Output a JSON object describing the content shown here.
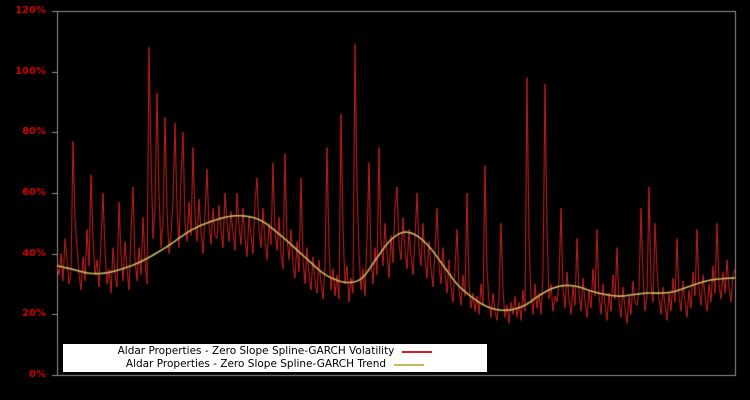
{
  "window": {
    "background": "#000000"
  },
  "axis": {
    "label_color": "#cc0000",
    "frame_color": "#909090",
    "y_ticks": [
      {
        "label": "0%",
        "value": 0
      },
      {
        "label": "20%",
        "value": 20
      },
      {
        "label": "40%",
        "value": 40
      },
      {
        "label": "60%",
        "value": 60
      },
      {
        "label": "80%",
        "value": 80
      },
      {
        "label": "100%",
        "value": 100
      },
      {
        "label": "120%",
        "value": 120
      }
    ]
  },
  "legend": {
    "background": "#ffffff",
    "text_color": "#000000",
    "entries": [
      {
        "label": "Aldar Properties - Zero Slope Spline-GARCH Volatility",
        "color": "#cc2222"
      },
      {
        "label": "Aldar Properties - Zero Slope Spline-GARCH Trend",
        "color": "#c8b860"
      }
    ]
  },
  "chart_data": {
    "type": "line",
    "title": "",
    "xlabel": "",
    "ylabel": "",
    "ylim": [
      0,
      120
    ],
    "y_unit": "percent",
    "grid": false,
    "plot_background": "#000000",
    "legend_position": "inside-bottom-left",
    "series": [
      {
        "name": "Aldar Properties - Zero Slope Spline-GARCH Volatility",
        "color": "#cc2222",
        "style": "noisy-line",
        "values": [
          36,
          33,
          40,
          31,
          45,
          38,
          30,
          34,
          77,
          52,
          42,
          33,
          28,
          39,
          31,
          48,
          36,
          66,
          45,
          33,
          38,
          29,
          44,
          60,
          41,
          30,
          35,
          27,
          42,
          33,
          29,
          57,
          40,
          31,
          44,
          35,
          28,
          47,
          62,
          38,
          31,
          42,
          33,
          52,
          38,
          30,
          108,
          72,
          45,
          55,
          93,
          60,
          42,
          50,
          85,
          55,
          40,
          46,
          58,
          83,
          55,
          42,
          65,
          80,
          50,
          44,
          57,
          46,
          75,
          52,
          44,
          58,
          47,
          40,
          53,
          68,
          49,
          43,
          55,
          46,
          45,
          56,
          48,
          42,
          60,
          50,
          44,
          54,
          47,
          41,
          60,
          49,
          43,
          55,
          45,
          39,
          52,
          46,
          40,
          57,
          65,
          48,
          42,
          55,
          44,
          38,
          50,
          43,
          70,
          47,
          41,
          52,
          40,
          35,
          73,
          45,
          38,
          48,
          36,
          32,
          44,
          34,
          65,
          38,
          30,
          42,
          33,
          28,
          39,
          31,
          27,
          38,
          30,
          25,
          36,
          75,
          42,
          28,
          35,
          26,
          33,
          25,
          86,
          48,
          30,
          36,
          24,
          32,
          27,
          109,
          62,
          40,
          28,
          35,
          26,
          45,
          70,
          38,
          30,
          42,
          33,
          75,
          44,
          36,
          50,
          40,
          32,
          46,
          37,
          55,
          62,
          43,
          38,
          52,
          41,
          35,
          48,
          39,
          33,
          45,
          60,
          42,
          36,
          50,
          38,
          32,
          44,
          35,
          29,
          41,
          55,
          36,
          30,
          42,
          33,
          27,
          38,
          29,
          24,
          35,
          48,
          28,
          23,
          33,
          26,
          60,
          30,
          22,
          27,
          21,
          26,
          20,
          30,
          23,
          69,
          35,
          24,
          19,
          27,
          21,
          18,
          25,
          50,
          28,
          19,
          23,
          17,
          24,
          20,
          26,
          19,
          24,
          18,
          28,
          21,
          98,
          45,
          26,
          20,
          30,
          22,
          27,
          20,
          33,
          96,
          48,
          25,
          30,
          21,
          26,
          24,
          31,
          55,
          28,
          22,
          34,
          25,
          20,
          29,
          23,
          45,
          27,
          21,
          32,
          24,
          19,
          28,
          22,
          35,
          26,
          48,
          26,
          20,
          30,
          23,
          18,
          27,
          21,
          33,
          25,
          42,
          24,
          19,
          29,
          22,
          17,
          26,
          20,
          31,
          24,
          23,
          28,
          55,
          33,
          21,
          26,
          62,
          30,
          24,
          50,
          35,
          25,
          20,
          29,
          23,
          18,
          27,
          21,
          32,
          24,
          45,
          26,
          21,
          31,
          24,
          19,
          28,
          22,
          34,
          26,
          48,
          28,
          23,
          33,
          26,
          21,
          30,
          24,
          36,
          27,
          50,
          30,
          25,
          34,
          27,
          38,
          29,
          24,
          33,
          35
        ]
      },
      {
        "name": "Aldar Properties - Zero Slope Spline-GARCH Trend",
        "color": "#c8b860",
        "style": "smooth-line",
        "control_points": [
          [
            0.0,
            36
          ],
          [
            0.02,
            35
          ],
          [
            0.05,
            33.5
          ],
          [
            0.08,
            34
          ],
          [
            0.12,
            37
          ],
          [
            0.16,
            42
          ],
          [
            0.2,
            48
          ],
          [
            0.24,
            51.5
          ],
          [
            0.27,
            52.5
          ],
          [
            0.3,
            51
          ],
          [
            0.33,
            46
          ],
          [
            0.36,
            40
          ],
          [
            0.39,
            34
          ],
          [
            0.41,
            31.5
          ],
          [
            0.43,
            30.5
          ],
          [
            0.45,
            32
          ],
          [
            0.47,
            38
          ],
          [
            0.49,
            44
          ],
          [
            0.51,
            47
          ],
          [
            0.53,
            46
          ],
          [
            0.55,
            42
          ],
          [
            0.57,
            36
          ],
          [
            0.59,
            30
          ],
          [
            0.61,
            26
          ],
          [
            0.63,
            23
          ],
          [
            0.65,
            21.5
          ],
          [
            0.67,
            21.5
          ],
          [
            0.69,
            23
          ],
          [
            0.71,
            26
          ],
          [
            0.73,
            28.5
          ],
          [
            0.75,
            29.5
          ],
          [
            0.77,
            29
          ],
          [
            0.79,
            27.5
          ],
          [
            0.81,
            26.5
          ],
          [
            0.83,
            26
          ],
          [
            0.85,
            26.5
          ],
          [
            0.87,
            27
          ],
          [
            0.89,
            27
          ],
          [
            0.91,
            27.5
          ],
          [
            0.93,
            29
          ],
          [
            0.95,
            30.5
          ],
          [
            0.97,
            31.5
          ],
          [
            1.0,
            32
          ]
        ]
      }
    ]
  }
}
